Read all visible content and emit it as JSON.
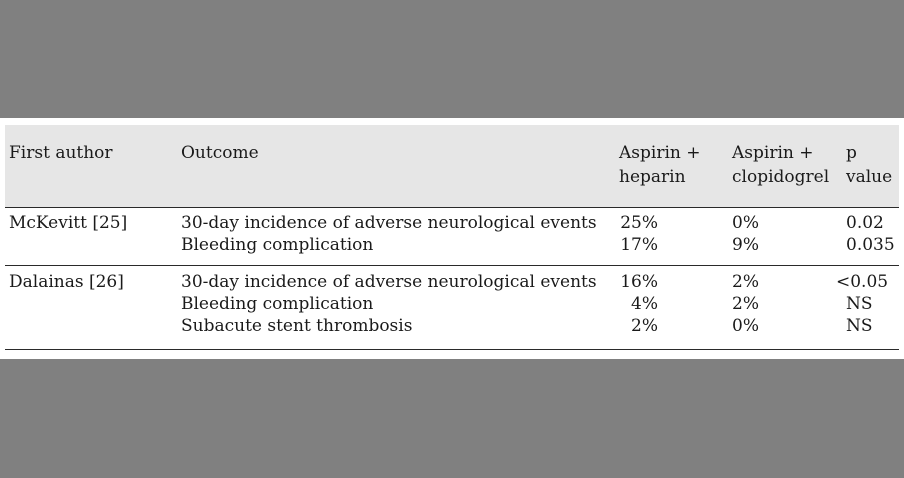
{
  "headers": {
    "first_author": "First author",
    "outcome": "Outcome",
    "aspirin_heparin_line1": "Aspirin +",
    "aspirin_heparin_line2": "heparin",
    "aspirin_clopidogrel_line1": "Aspirin +",
    "aspirin_clopidogrel_line2": "clopidogrel",
    "p_value_line1": "p",
    "p_value_line2": "value"
  },
  "rows": [
    {
      "author": "McKevitt [25]",
      "outcomes": [
        {
          "outcome": "30-day incidence of adverse neurological events",
          "aspirin_heparin": "25%",
          "aspirin_clopidogrel": "0%",
          "p_value": "0.02"
        },
        {
          "outcome": "Bleeding complication",
          "aspirin_heparin": "17%",
          "aspirin_clopidogrel": "9%",
          "p_value": "0.035"
        }
      ]
    },
    {
      "author": "Dalainas [26]",
      "outcomes": [
        {
          "outcome": "30-day incidence of adverse neurological events",
          "aspirin_heparin": "16%",
          "aspirin_clopidogrel": "2%",
          "p_value": "<0.05"
        },
        {
          "outcome": "Bleeding complication",
          "aspirin_heparin": "4%",
          "aspirin_clopidogrel": "2%",
          "p_value": "NS"
        },
        {
          "outcome": "Subacute stent thrombosis",
          "aspirin_heparin": "2%",
          "aspirin_clopidogrel": "0%",
          "p_value": "NS"
        }
      ]
    }
  ]
}
